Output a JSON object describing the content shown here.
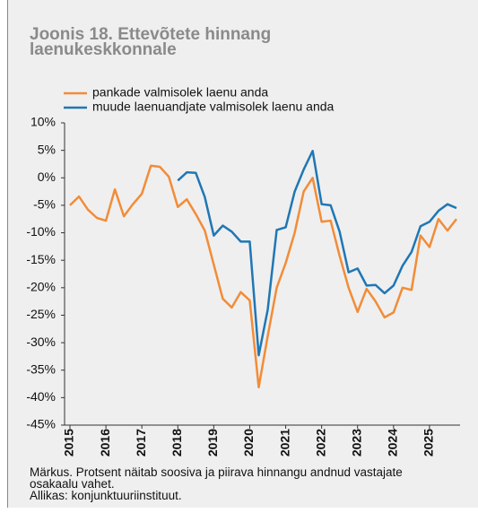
{
  "chart_data": {
    "type": "line",
    "title": "Joonis 18. Ettevõtete hinnang laenukeskkonnale",
    "note": "Märkus. Protsent näitab soosiva ja piirava hinnangu andnud vastajate osakaalu vahet.",
    "source": "Allikas: konjunktuuriinstituut.",
    "x": [
      2015,
      2015.25,
      2015.5,
      2015.75,
      2016,
      2016.25,
      2016.5,
      2016.75,
      2017,
      2017.25,
      2017.5,
      2017.75,
      2018,
      2018.25,
      2018.5,
      2018.75,
      2019,
      2019.25,
      2019.5,
      2019.75,
      2020,
      2020.25,
      2020.5,
      2020.75,
      2021,
      2021.25,
      2021.5,
      2021.75,
      2022,
      2022.25,
      2022.5,
      2022.75,
      2023,
      2023.25,
      2023.5,
      2023.75,
      2024,
      2024.25,
      2024.5,
      2024.75,
      2025,
      2025.25,
      2025.5,
      2025.75
    ],
    "series": [
      {
        "name": "pankade valmisolek laenu anda",
        "color": "#f28c38",
        "values": [
          -5,
          -3.4,
          -5.8,
          -7.3,
          -7.8,
          -2.1,
          -7,
          -4.8,
          -2.9,
          2.2,
          2,
          0.2,
          -5.3,
          -3.9,
          -6.6,
          -9.6,
          -15.8,
          -22,
          -23.6,
          -20.8,
          -22.3,
          -38.1,
          -28.8,
          -20,
          -15.5,
          -10,
          -2.5,
          0,
          -8,
          -7.8,
          -14.2,
          -20,
          -24.4,
          -20.2,
          -22.5,
          -25.4,
          -24.5,
          -20,
          -20.4,
          -10.5,
          -12.6,
          -7.5,
          -9.6,
          -7.5
        ]
      },
      {
        "name": "muude laenuandjate valmisolek laenu anda",
        "color": "#1f77b4",
        "values": [
          null,
          null,
          null,
          null,
          null,
          null,
          null,
          null,
          null,
          null,
          null,
          null,
          -0.5,
          1,
          0.9,
          -3.5,
          -10.5,
          -8.7,
          -9.8,
          -11.6,
          -11.6,
          -32.3,
          -24,
          -9.5,
          -9,
          -2.5,
          1.5,
          4.9,
          -4.8,
          -5,
          -9.8,
          -17.2,
          -16.5,
          -19.6,
          -19.5,
          -21,
          -19.6,
          -16,
          -13.5,
          -8.8,
          -8,
          -6,
          -4.8,
          -5.5
        ]
      }
    ],
    "xlim": [
      2014.85,
      2025.85
    ],
    "xticks": [
      2015,
      2016,
      2017,
      2018,
      2019,
      2020,
      2021,
      2022,
      2023,
      2024,
      2025
    ],
    "ylim": [
      -45,
      10
    ],
    "yticks": [
      {
        "value": 10,
        "label": "10%"
      },
      {
        "value": 5,
        "label": "5%"
      },
      {
        "value": 0,
        "label": "0%"
      },
      {
        "value": -5,
        "label": "-5%"
      },
      {
        "value": -10,
        "label": "-10%"
      },
      {
        "value": -15,
        "label": "-15%"
      },
      {
        "value": -20,
        "label": "-20%"
      },
      {
        "value": -25,
        "label": "-25%"
      },
      {
        "value": -30,
        "label": "-30%"
      },
      {
        "value": -35,
        "label": "-35%"
      },
      {
        "value": -40,
        "label": "-40%"
      },
      {
        "value": -45,
        "label": "-45%"
      }
    ],
    "grid": false
  }
}
